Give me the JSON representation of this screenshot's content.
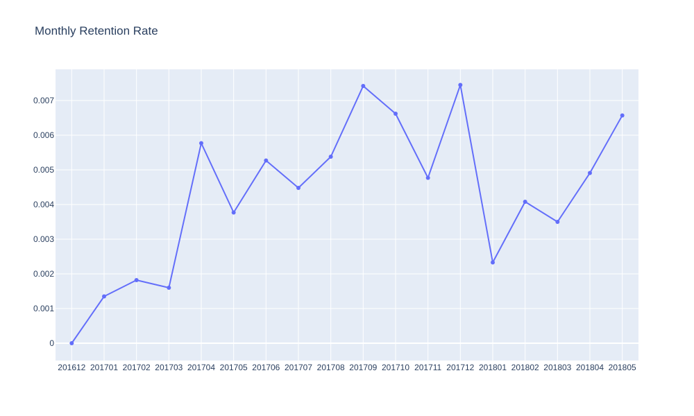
{
  "chart_data": {
    "type": "line",
    "title": "Monthly Retention Rate",
    "xlabel": "",
    "ylabel": "",
    "x": [
      "201612",
      "201701",
      "201702",
      "201703",
      "201704",
      "201705",
      "201706",
      "201707",
      "201708",
      "201709",
      "201710",
      "201711",
      "201712",
      "201801",
      "201802",
      "201803",
      "201804",
      "201805"
    ],
    "series": [
      {
        "name": "",
        "color": "#636efa",
        "values": [
          0,
          0.00135,
          0.00182,
          0.0016,
          0.00577,
          0.00377,
          0.00527,
          0.00448,
          0.00538,
          0.00742,
          0.00662,
          0.00477,
          0.00745,
          0.00233,
          0.00408,
          0.0035,
          0.00491,
          0.00657
        ]
      }
    ],
    "ylim": [
      -0.0005,
      0.0079
    ],
    "yticks": [
      0,
      0.001,
      0.002,
      0.003,
      0.004,
      0.005,
      0.006,
      0.007
    ],
    "ytick_labels": [
      "0",
      "0.001",
      "0.002",
      "0.003",
      "0.004",
      "0.005",
      "0.006",
      "0.007"
    ],
    "grid": true,
    "colors": {
      "plot_bg": "#e5ecf6",
      "grid": "#ffffff",
      "text": "#2a3f5f",
      "line": "#636efa"
    }
  }
}
